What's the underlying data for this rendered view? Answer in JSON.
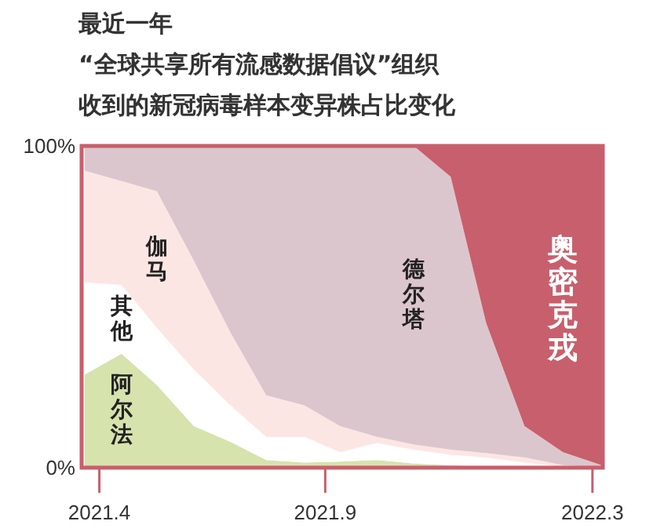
{
  "chart_data": {
    "type": "area",
    "stacked": true,
    "title": "最近一年",
    "subtitle": "“全球共享所有流感数据倡议”组织收到的新冠病毒样本变异株占比变化",
    "x": [
      "2021-03-22",
      "2021-04-16",
      "2021-05-10",
      "2021-06-04",
      "2021-06-29",
      "2021-07-23",
      "2021-08-18",
      "2021-09-11",
      "2021-10-06",
      "2021-10-31",
      "2021-11-25",
      "2021-12-19",
      "2022-01-14",
      "2022-02-09",
      "2022-03-07"
    ],
    "series": [
      {
        "name": "阿尔法",
        "color": "#d6e3ad",
        "values": [
          28.9,
          35.4,
          25.7,
          12.9,
          8.0,
          2.4,
          1.6,
          1.9,
          2.4,
          1.3,
          0.8,
          0.3,
          0,
          0,
          0
        ]
      },
      {
        "name": "其他",
        "color": "#ffffff",
        "values": [
          28.7,
          21.4,
          17.7,
          17.6,
          11.3,
          7.2,
          8.0,
          2.9,
          5.3,
          4.3,
          3.2,
          2.9,
          1.6,
          0.3,
          0
        ]
      },
      {
        "name": "伽马",
        "color": "#fce6e3",
        "values": [
          34.7,
          32.3,
          42.5,
          33.8,
          22.5,
          12.9,
          9.7,
          8.1,
          1.9,
          1.6,
          1.6,
          1.3,
          1.6,
          0.5,
          0
        ]
      },
      {
        "name": "德尔塔",
        "color": "#dcc6cd",
        "values": [
          7.7,
          10.9,
          14.1,
          35.7,
          58.2,
          77.5,
          80.7,
          87.1,
          90.4,
          92.8,
          84.8,
          40.5,
          9.7,
          4.0,
          0.8
        ]
      },
      {
        "name": "奥密克戎",
        "color": "#c85f6c",
        "values": [
          0,
          0,
          0,
          0,
          0,
          0,
          0,
          0,
          0,
          0,
          9.6,
          55.0,
          87.1,
          95.2,
          99.2
        ]
      }
    ],
    "xlim": [
      "2021-03-20",
      "2022-03-08"
    ],
    "xticks": [
      {
        "value": "2021-04-01",
        "label": "2021.4"
      },
      {
        "value": "2021-09-01",
        "label": "2021.9"
      },
      {
        "value": "2022-03-01",
        "label": "2022.3"
      }
    ],
    "ylim": [
      0,
      100
    ],
    "yticks": [
      {
        "value": 0,
        "label": "0%"
      },
      {
        "value": 100,
        "label": "100%"
      }
    ],
    "grid": false
  }
}
